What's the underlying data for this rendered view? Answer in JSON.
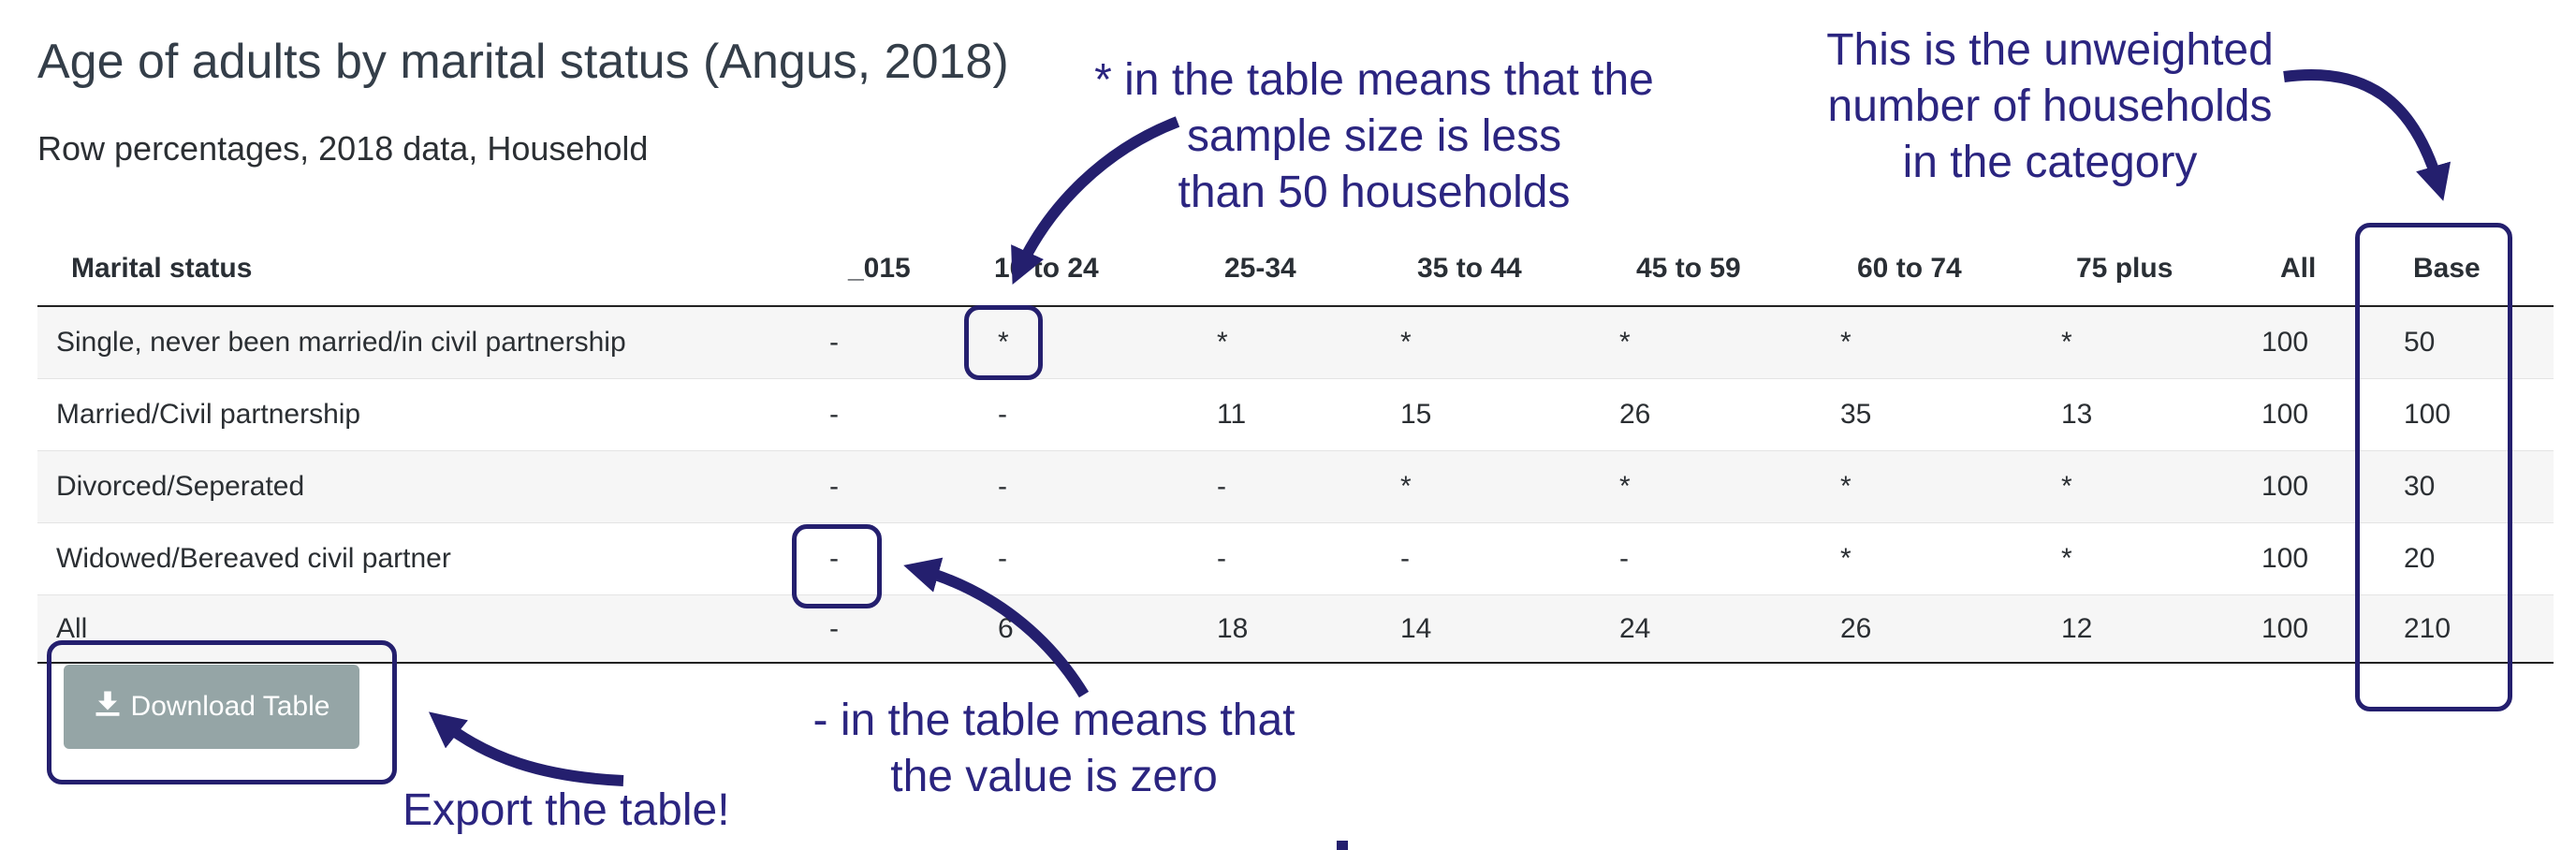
{
  "page": {
    "title": "Age of adults by marital status (Angus, 2018)",
    "subtitle": "Row percentages, 2018 data, Household"
  },
  "table": {
    "headers": [
      "Marital status",
      "_015",
      "16 to 24",
      "25-34",
      "35 to 44",
      "45 to 59",
      "60 to 74",
      "75 plus",
      "All",
      "Base"
    ],
    "rows": [
      [
        "Single, never been married/in civil partnership",
        "-",
        "*",
        "*",
        "*",
        "*",
        "*",
        "*",
        "100",
        "50"
      ],
      [
        "Married/Civil partnership",
        "-",
        "-",
        "11",
        "15",
        "26",
        "35",
        "13",
        "100",
        "100"
      ],
      [
        "Divorced/Seperated",
        "-",
        "-",
        "-",
        "*",
        "*",
        "*",
        "*",
        "100",
        "30"
      ],
      [
        "Widowed/Bereaved civil partner",
        "-",
        "-",
        "-",
        "-",
        "-",
        "*",
        "*",
        "100",
        "20"
      ],
      [
        "All",
        "-",
        "6",
        "18",
        "14",
        "24",
        "26",
        "12",
        "100",
        "210"
      ]
    ]
  },
  "download": {
    "label": "Download Table",
    "icon": "download-icon"
  },
  "annotations": {
    "asterisk_note": [
      "* in the table means that the",
      "sample size is less",
      "than 50 households"
    ],
    "base_note": [
      "This is the unweighted",
      "number of households",
      "in the category"
    ],
    "dash_note": [
      "- in the table means that",
      "the value is zero"
    ],
    "export_note": "Export the table!"
  },
  "colors": {
    "annotation": "#2b2580",
    "button": "#95a5a6"
  }
}
